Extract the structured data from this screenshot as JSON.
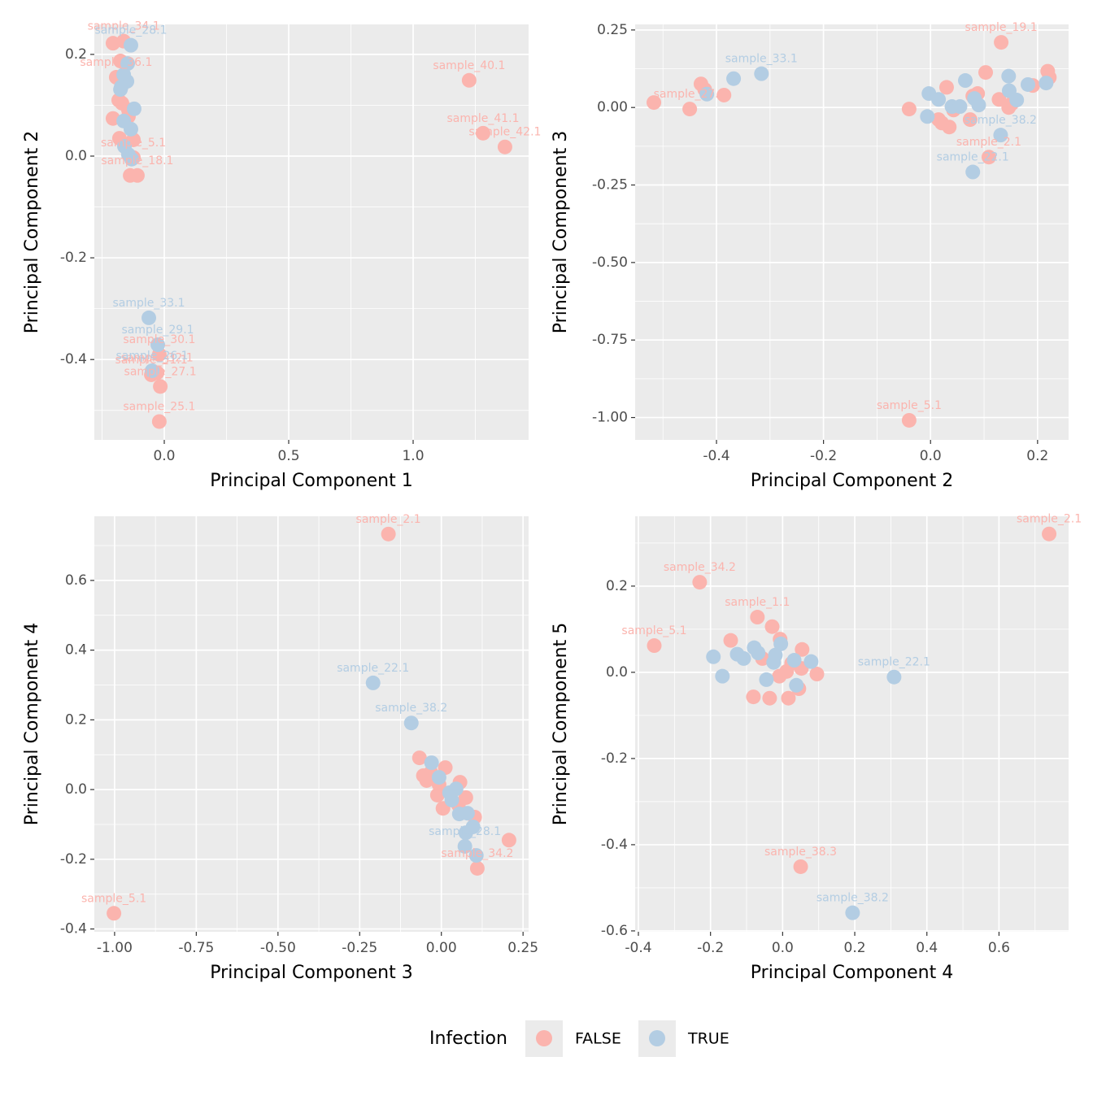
{
  "legend": {
    "title": "Infection",
    "position": "bottom"
  },
  "chart_data": [
    {
      "type": "scatter",
      "x_label": "Principal Component 1",
      "y_label": "Principal Component 2",
      "xlim": [
        -0.281,
        1.464
      ],
      "ylim": [
        -0.558,
        0.259
      ],
      "xticks": [
        {
          "value": 0,
          "label": "0.0"
        },
        0.5,
        {
          "value": 1,
          "label": "1.0"
        }
      ],
      "yticks": [
        -0.4,
        -0.2,
        {
          "value": 0,
          "label": "0.0"
        },
        0.2
      ],
      "grid": true,
      "series": [
        {
          "name": "FALSE",
          "color": "#FBB4AE",
          "x": [
            -0.206,
            -0.163,
            -0.176,
            -0.193,
            -0.183,
            -0.17,
            -0.144,
            -0.144,
            -0.206,
            -0.18,
            -0.124,
            -0.137,
            -0.108,
            1.225,
            1.281,
            1.369,
            -0.02,
            -0.029,
            -0.052,
            -0.016,
            -0.02,
            -0.124
          ],
          "y": [
            0.222,
            0.226,
            0.187,
            0.155,
            0.11,
            0.104,
            0.091,
            0.078,
            0.074,
            0.035,
            0.032,
            -0.038,
            -0.038,
            0.149,
            0.045,
            0.018,
            -0.39,
            -0.426,
            -0.43,
            -0.453,
            -0.522,
            -0.003
          ],
          "labels": [
            null,
            "sample_34.1",
            null,
            "sample_36.1",
            null,
            null,
            null,
            null,
            null,
            null,
            null,
            null,
            "sample_18.1",
            "sample_40.1",
            "sample_41.1",
            "sample_42.1",
            "sample_30.1",
            "sample_32.1",
            "sample_31.1",
            "sample_27.1",
            "sample_25.1",
            "sample_5.1"
          ]
        },
        {
          "name": "TRUE",
          "color": "#B3CDE3",
          "x": [
            -0.134,
            -0.147,
            -0.163,
            -0.15,
            -0.173,
            -0.176,
            -0.121,
            -0.163,
            -0.134,
            -0.16,
            -0.144,
            -0.131,
            -0.062,
            -0.026,
            -0.049
          ],
          "y": [
            0.218,
            0.182,
            0.16,
            0.147,
            0.136,
            0.131,
            0.093,
            0.069,
            0.053,
            0.019,
            0.003,
            -0.006,
            -0.318,
            -0.371,
            -0.422
          ],
          "labels": [
            "sample_28.1",
            null,
            null,
            null,
            null,
            null,
            null,
            null,
            null,
            null,
            null,
            null,
            "sample_33.1",
            "sample_29.1",
            "sample_26.1"
          ]
        }
      ]
    },
    {
      "type": "scatter",
      "x_label": "Principal Component 2",
      "y_label": "Principal Component 3",
      "xlim": [
        -0.552,
        0.258
      ],
      "ylim": [
        -1.072,
        0.268
      ],
      "xticks": [
        -0.4,
        -0.2,
        {
          "value": 0,
          "label": "0.0"
        },
        0.2
      ],
      "yticks": [
        {
          "value": -1,
          "label": "-1.00"
        },
        -0.75,
        {
          "value": -0.5,
          "label": "-0.50"
        },
        -0.25,
        {
          "value": 0,
          "label": "0.00"
        },
        0.25
      ],
      "grid": true,
      "series": [
        {
          "name": "FALSE",
          "color": "#FBB4AE",
          "x": [
            -0.517,
            -0.45,
            -0.429,
            -0.422,
            -0.386,
            -0.04,
            0.015,
            0.021,
            0.03,
            0.035,
            0.043,
            0.074,
            0.079,
            0.088,
            0.103,
            0.128,
            0.132,
            0.146,
            0.152,
            0.109,
            0.219,
            0.222,
            0.191,
            -0.04
          ],
          "y": [
            0.016,
            -0.005,
            0.076,
            0.058,
            0.04,
            -0.005,
            -0.039,
            -0.05,
            0.065,
            -0.063,
            -0.008,
            -0.039,
            0.037,
            0.045,
            0.113,
            0.026,
            0.21,
            0.0,
            0.013,
            -0.16,
            0.117,
            0.097,
            0.071,
            -1.009
          ],
          "labels": [
            null,
            "sample_27.1",
            null,
            null,
            null,
            null,
            null,
            null,
            null,
            null,
            null,
            null,
            null,
            null,
            null,
            null,
            "sample_19.1",
            null,
            null,
            "sample_2.1",
            null,
            null,
            null,
            "sample_5.1"
          ]
        },
        {
          "name": "TRUE",
          "color": "#B3CDE3",
          "x": [
            -0.418,
            -0.368,
            -0.316,
            -0.006,
            -0.003,
            0.015,
            0.04,
            0.055,
            0.065,
            0.082,
            0.09,
            0.131,
            0.079,
            0.146,
            0.147,
            0.161,
            0.182,
            0.216
          ],
          "y": [
            0.043,
            0.093,
            0.109,
            -0.029,
            0.045,
            0.026,
            0.003,
            0.003,
            0.087,
            0.029,
            0.008,
            -0.089,
            -0.208,
            0.101,
            0.054,
            0.024,
            0.074,
            0.079
          ],
          "labels": [
            null,
            null,
            "sample_33.1",
            null,
            null,
            null,
            null,
            null,
            null,
            null,
            null,
            "sample_38.2",
            "sample_22.1",
            null,
            null,
            null,
            null,
            null
          ]
        }
      ]
    },
    {
      "type": "scatter",
      "x_label": "Principal Component 3",
      "y_label": "Principal Component 4",
      "xlim": [
        -1.062,
        0.267
      ],
      "ylim": [
        -0.408,
        0.784
      ],
      "xticks": [
        {
          "value": -1,
          "label": "-1.00"
        },
        -0.75,
        {
          "value": -0.5,
          "label": "-0.50"
        },
        -0.25,
        {
          "value": 0,
          "label": "0.00"
        },
        0.25
      ],
      "yticks": [
        -0.4,
        -0.2,
        {
          "value": 0,
          "label": "0.0"
        },
        0.2,
        0.4,
        0.6
      ],
      "grid": true,
      "series": [
        {
          "name": "FALSE",
          "color": "#FBB4AE",
          "x": [
            -0.162,
            -1.002,
            0.207,
            0.11,
            -0.067,
            -0.055,
            -0.045,
            -0.032,
            -0.007,
            -0.012,
            0.005,
            0.012,
            0.057,
            0.075,
            0.102,
            0.052
          ],
          "y": [
            0.733,
            -0.355,
            -0.145,
            -0.226,
            0.091,
            0.04,
            0.026,
            0.049,
            0.014,
            -0.016,
            -0.054,
            0.063,
            0.021,
            -0.023,
            -0.079,
            -0.044
          ],
          "labels": [
            "sample_2.1",
            "sample_5.1",
            null,
            "sample_34.2",
            null,
            null,
            null,
            null,
            null,
            null,
            null,
            null,
            null,
            null,
            null,
            null
          ]
        },
        {
          "name": "TRUE",
          "color": "#B3CDE3",
          "x": [
            -0.209,
            -0.092,
            -0.03,
            -0.007,
            0.025,
            0.032,
            0.045,
            0.055,
            0.08,
            0.075,
            0.097,
            0.072,
            0.107
          ],
          "y": [
            0.306,
            0.191,
            0.077,
            0.035,
            -0.009,
            -0.03,
            0.002,
            -0.07,
            -0.068,
            -0.124,
            -0.107,
            -0.163,
            -0.189
          ],
          "labels": [
            "sample_22.1",
            "sample_38.2",
            null,
            null,
            null,
            null,
            null,
            null,
            null,
            null,
            null,
            "sample_28.1",
            null
          ]
        }
      ]
    },
    {
      "type": "scatter",
      "x_label": "Principal Component 4",
      "y_label": "Principal Component 5",
      "xlim": [
        -0.409,
        0.793
      ],
      "ylim": [
        -0.602,
        0.362
      ],
      "xticks": [
        -0.4,
        -0.2,
        {
          "value": 0,
          "label": "0.0"
        },
        0.2,
        0.4,
        0.6
      ],
      "yticks": [
        -0.6,
        -0.4,
        -0.2,
        {
          "value": 0,
          "label": "0.0"
        },
        0.2
      ],
      "grid": true,
      "series": [
        {
          "name": "FALSE",
          "color": "#FBB4AE",
          "x": [
            0.739,
            -0.23,
            -0.07,
            -0.356,
            -0.144,
            -0.029,
            -0.007,
            -0.056,
            0.054,
            -0.009,
            0.011,
            0.025,
            0.052,
            0.095,
            -0.081,
            -0.036,
            0.016,
            0.045,
            0.05
          ],
          "y": [
            0.321,
            0.209,
            0.128,
            0.062,
            0.074,
            0.106,
            0.077,
            0.032,
            0.053,
            -0.009,
            0.002,
            0.021,
            0.009,
            -0.004,
            -0.057,
            -0.06,
            -0.06,
            -0.038,
            -0.451
          ],
          "labels": [
            "sample_2.1",
            "sample_34.2",
            "sample_1.1",
            "sample_5.1",
            null,
            null,
            null,
            null,
            null,
            null,
            null,
            null,
            null,
            null,
            null,
            null,
            null,
            null,
            "sample_38.3"
          ]
        },
        {
          "name": "TRUE",
          "color": "#B3CDE3",
          "x": [
            -0.192,
            -0.167,
            -0.126,
            -0.108,
            -0.079,
            -0.068,
            -0.02,
            -0.025,
            -0.045,
            -0.005,
            0.032,
            0.079,
            0.038,
            0.309,
            0.194
          ],
          "y": [
            0.036,
            -0.009,
            0.042,
            0.032,
            0.057,
            0.045,
            0.04,
            0.023,
            -0.017,
            0.066,
            0.028,
            0.025,
            -0.03,
            -0.011,
            -0.558
          ],
          "labels": [
            null,
            null,
            null,
            null,
            null,
            null,
            null,
            null,
            null,
            null,
            null,
            null,
            null,
            "sample_22.1",
            "sample_38.2"
          ]
        }
      ]
    }
  ]
}
